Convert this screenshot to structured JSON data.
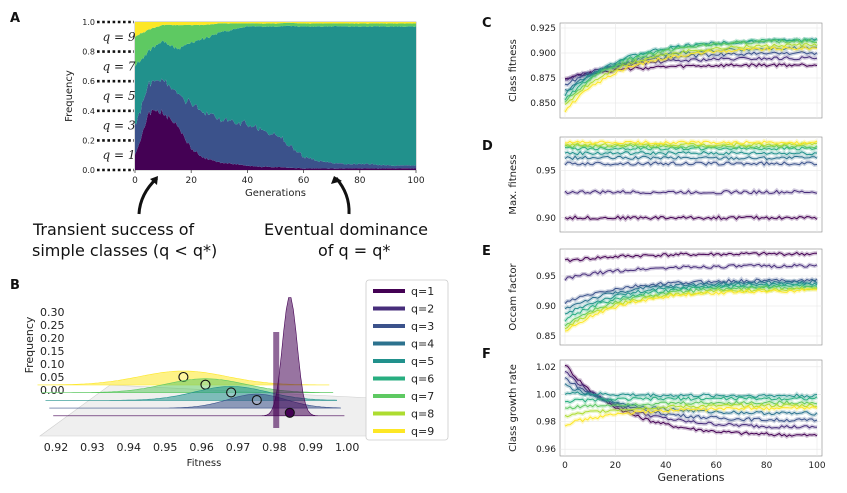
{
  "panels": {
    "a": "A",
    "b": "B",
    "c": "C",
    "d": "D",
    "e": "E",
    "f": "F"
  },
  "colors": {
    "q1": "#440154",
    "q2": "#472d7b",
    "q3": "#3b528b",
    "q4": "#2c728e",
    "q5": "#21918c",
    "q6": "#28ae80",
    "q7": "#5ec962",
    "q8": "#addc30",
    "q9": "#fde725"
  },
  "annotations": {
    "left_line1": "Transient success of",
    "left_line2": "simple classes (q < q*)",
    "right_line1": "Eventual dominance",
    "right_line2": "of q = q*"
  },
  "chart_data": [
    {
      "id": "A",
      "type": "area",
      "xlabel": "Generations",
      "ylabel": "Frequency",
      "xticks": [
        "0",
        "20",
        "40",
        "60",
        "80",
        "100"
      ],
      "yticks": [
        "0.0",
        "0.2",
        "0.4",
        "0.6",
        "0.8",
        "1.0"
      ],
      "xlim": [
        0,
        100
      ],
      "ylim": [
        0,
        1
      ],
      "q_labels": [
        "q = 1",
        "q = 3",
        "q = 5",
        "q = 7",
        "q = 9"
      ],
      "x": [
        0,
        5,
        10,
        15,
        20,
        25,
        30,
        35,
        40,
        45,
        50,
        55,
        60,
        65,
        70,
        75,
        80,
        85,
        90,
        95,
        100
      ],
      "series": [
        {
          "name": "q=1",
          "values": [
            0.1,
            0.38,
            0.4,
            0.3,
            0.14,
            0.08,
            0.05,
            0.04,
            0.03,
            0.02,
            0.02,
            0.015,
            0.01,
            0.01,
            0.01,
            0.01,
            0.01,
            0.01,
            0.01,
            0.01,
            0.01
          ]
        },
        {
          "name": "q=3",
          "values": [
            0.2,
            0.2,
            0.22,
            0.22,
            0.3,
            0.3,
            0.3,
            0.28,
            0.28,
            0.25,
            0.22,
            0.15,
            0.08,
            0.05,
            0.04,
            0.03,
            0.03,
            0.03,
            0.02,
            0.02,
            0.02
          ]
        },
        {
          "name": "q=5",
          "values": [
            0.4,
            0.23,
            0.25,
            0.3,
            0.42,
            0.51,
            0.58,
            0.63,
            0.66,
            0.7,
            0.73,
            0.8,
            0.88,
            0.91,
            0.92,
            0.93,
            0.93,
            0.93,
            0.94,
            0.94,
            0.94
          ]
        },
        {
          "name": "q=7",
          "values": [
            0.2,
            0.14,
            0.11,
            0.16,
            0.12,
            0.09,
            0.06,
            0.04,
            0.02,
            0.02,
            0.02,
            0.02,
            0.02,
            0.02,
            0.02,
            0.02,
            0.02,
            0.02,
            0.02,
            0.02,
            0.02
          ]
        },
        {
          "name": "q=9",
          "values": [
            0.1,
            0.05,
            0.02,
            0.02,
            0.02,
            0.02,
            0.01,
            0.01,
            0.01,
            0.01,
            0.01,
            0.005,
            0.01,
            0.01,
            0.01,
            0.01,
            0.01,
            0.01,
            0.01,
            0.01,
            0.01
          ]
        }
      ]
    },
    {
      "id": "B",
      "type": "area",
      "xlabel": "Fitness",
      "ylabel": "Frequency",
      "xticks": [
        "0.92",
        "0.93",
        "0.94",
        "0.95",
        "0.96",
        "0.97",
        "0.98",
        "0.99",
        "1.00"
      ],
      "yticks": [
        "0.00",
        "0.05",
        "0.10",
        "0.15",
        "0.20",
        "0.25",
        "0.30"
      ],
      "legend": [
        "q=1",
        "q=2",
        "q=3",
        "q=4",
        "q=5",
        "q=6",
        "q=7",
        "q=8",
        "q=9"
      ],
      "series": [
        {
          "name": "q=9",
          "mean": 0.955,
          "sd": 0.012
        },
        {
          "name": "q=7",
          "mean": 0.96,
          "sd": 0.011
        },
        {
          "name": "q=5",
          "mean": 0.966,
          "sd": 0.01
        },
        {
          "name": "q=3",
          "mean": 0.972,
          "sd": 0.008
        },
        {
          "name": "q=1",
          "mean": 0.98,
          "sd": 0.002
        }
      ]
    },
    {
      "id": "C",
      "type": "line",
      "ylabel": "Class fitness",
      "yticks": [
        "0.850",
        "0.875",
        "0.900",
        "0.925"
      ],
      "ylim": [
        0.835,
        0.93
      ],
      "xlim": [
        0,
        100
      ],
      "series": [
        {
          "name": "q=1",
          "start": 0.875,
          "end": 0.888
        },
        {
          "name": "q=2",
          "start": 0.873,
          "end": 0.895
        },
        {
          "name": "q=3",
          "start": 0.868,
          "end": 0.9
        },
        {
          "name": "q=4",
          "start": 0.862,
          "end": 0.905
        },
        {
          "name": "q=5",
          "start": 0.858,
          "end": 0.913
        },
        {
          "name": "q=6",
          "start": 0.853,
          "end": 0.913
        },
        {
          "name": "q=7",
          "start": 0.85,
          "end": 0.912
        },
        {
          "name": "q=8",
          "start": 0.847,
          "end": 0.908
        },
        {
          "name": "q=9",
          "start": 0.842,
          "end": 0.905
        }
      ]
    },
    {
      "id": "D",
      "type": "line",
      "ylabel": "Max. fitness",
      "yticks": [
        "0.90",
        "0.95"
      ],
      "ylim": [
        0.885,
        0.985
      ],
      "xlim": [
        0,
        100
      ],
      "series": [
        {
          "name": "q=1",
          "start": 0.9,
          "end": 0.9
        },
        {
          "name": "q=2",
          "start": 0.927,
          "end": 0.927
        },
        {
          "name": "q=3",
          "start": 0.957,
          "end": 0.957
        },
        {
          "name": "q=4",
          "start": 0.963,
          "end": 0.963
        },
        {
          "name": "q=5",
          "start": 0.968,
          "end": 0.968
        },
        {
          "name": "q=6",
          "start": 0.973,
          "end": 0.973
        },
        {
          "name": "q=7",
          "start": 0.975,
          "end": 0.975
        },
        {
          "name": "q=8",
          "start": 0.977,
          "end": 0.977
        },
        {
          "name": "q=9",
          "start": 0.979,
          "end": 0.979
        }
      ]
    },
    {
      "id": "E",
      "type": "line",
      "ylabel": "Occam factor",
      "yticks": [
        "0.85",
        "0.90",
        "0.95"
      ],
      "ylim": [
        0.835,
        0.995
      ],
      "xlim": [
        0,
        100
      ],
      "series": [
        {
          "name": "q=1",
          "start": 0.975,
          "end": 0.987
        },
        {
          "name": "q=2",
          "start": 0.945,
          "end": 0.967
        },
        {
          "name": "q=3",
          "start": 0.905,
          "end": 0.943
        },
        {
          "name": "q=4",
          "start": 0.895,
          "end": 0.94
        },
        {
          "name": "q=5",
          "start": 0.885,
          "end": 0.937
        },
        {
          "name": "q=6",
          "start": 0.877,
          "end": 0.934
        },
        {
          "name": "q=7",
          "start": 0.868,
          "end": 0.931
        },
        {
          "name": "q=8",
          "start": 0.862,
          "end": 0.928
        },
        {
          "name": "q=9",
          "start": 0.857,
          "end": 0.926
        }
      ]
    },
    {
      "id": "F",
      "type": "line",
      "xlabel": "Generations",
      "ylabel": "Class growth rate",
      "xticks": [
        "0",
        "20",
        "40",
        "60",
        "80",
        "100"
      ],
      "yticks": [
        "0.96",
        "0.98",
        "1.00",
        "1.02"
      ],
      "ylim": [
        0.955,
        1.025
      ],
      "xlim": [
        0,
        100
      ],
      "series": [
        {
          "name": "q=1",
          "start": 1.022,
          "end": 0.97
        },
        {
          "name": "q=2",
          "start": 1.017,
          "end": 0.976
        },
        {
          "name": "q=3",
          "start": 1.012,
          "end": 0.981
        },
        {
          "name": "q=4",
          "start": 1.007,
          "end": 0.986
        },
        {
          "name": "q=5",
          "start": 1.001,
          "end": 0.999
        },
        {
          "name": "q=6",
          "start": 0.995,
          "end": 0.997
        },
        {
          "name": "q=7",
          "start": 0.99,
          "end": 0.994
        },
        {
          "name": "q=8",
          "start": 0.984,
          "end": 0.992
        },
        {
          "name": "q=9",
          "start": 0.978,
          "end": 0.99
        }
      ]
    }
  ]
}
